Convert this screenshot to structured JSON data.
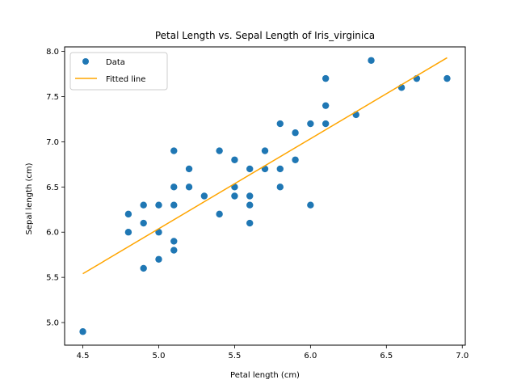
{
  "chart_data": {
    "type": "scatter",
    "title": "Petal Length vs. Sepal Length of Iris_virginica",
    "xlabel": "Petal length (cm)",
    "ylabel": "Sepal length (cm)",
    "xlim": [
      4.38,
      7.02
    ],
    "ylim": [
      4.75,
      8.05
    ],
    "xticks": [
      "4.5",
      "5.0",
      "5.5",
      "6.0",
      "6.5",
      "7.0"
    ],
    "yticks": [
      "5.0",
      "5.5",
      "6.0",
      "6.5",
      "7.0",
      "7.5",
      "8.0"
    ],
    "grid": false,
    "legend_position": "top-left",
    "series": [
      {
        "name": "Data",
        "kind": "scatter",
        "color": "#1f77b4",
        "points": [
          [
            4.5,
            4.9
          ],
          [
            4.8,
            6.2
          ],
          [
            4.8,
            6.0
          ],
          [
            4.9,
            6.3
          ],
          [
            4.9,
            6.1
          ],
          [
            4.9,
            5.6
          ],
          [
            5.0,
            6.3
          ],
          [
            5.0,
            6.0
          ],
          [
            5.0,
            5.7
          ],
          [
            5.1,
            6.9
          ],
          [
            5.1,
            6.5
          ],
          [
            5.1,
            6.3
          ],
          [
            5.1,
            5.9
          ],
          [
            5.1,
            5.8
          ],
          [
            5.2,
            6.7
          ],
          [
            5.2,
            6.5
          ],
          [
            5.3,
            6.4
          ],
          [
            5.4,
            6.9
          ],
          [
            5.4,
            6.2
          ],
          [
            5.5,
            6.8
          ],
          [
            5.5,
            6.5
          ],
          [
            5.5,
            6.4
          ],
          [
            5.6,
            6.7
          ],
          [
            5.6,
            6.4
          ],
          [
            5.6,
            6.3
          ],
          [
            5.6,
            6.1
          ],
          [
            5.7,
            6.9
          ],
          [
            5.7,
            6.7
          ],
          [
            5.8,
            7.2
          ],
          [
            5.8,
            6.7
          ],
          [
            5.8,
            6.5
          ],
          [
            5.9,
            7.1
          ],
          [
            5.9,
            6.8
          ],
          [
            6.0,
            7.2
          ],
          [
            6.0,
            6.3
          ],
          [
            6.1,
            7.7
          ],
          [
            6.1,
            7.4
          ],
          [
            6.1,
            7.2
          ],
          [
            6.3,
            7.3
          ],
          [
            6.4,
            7.9
          ],
          [
            6.6,
            7.6
          ],
          [
            6.7,
            7.7
          ],
          [
            6.9,
            7.7
          ]
        ]
      },
      {
        "name": "Fitted line",
        "kind": "line",
        "color": "#ffa500",
        "points": [
          [
            4.5,
            5.54
          ],
          [
            6.9,
            7.93
          ]
        ]
      }
    ]
  }
}
